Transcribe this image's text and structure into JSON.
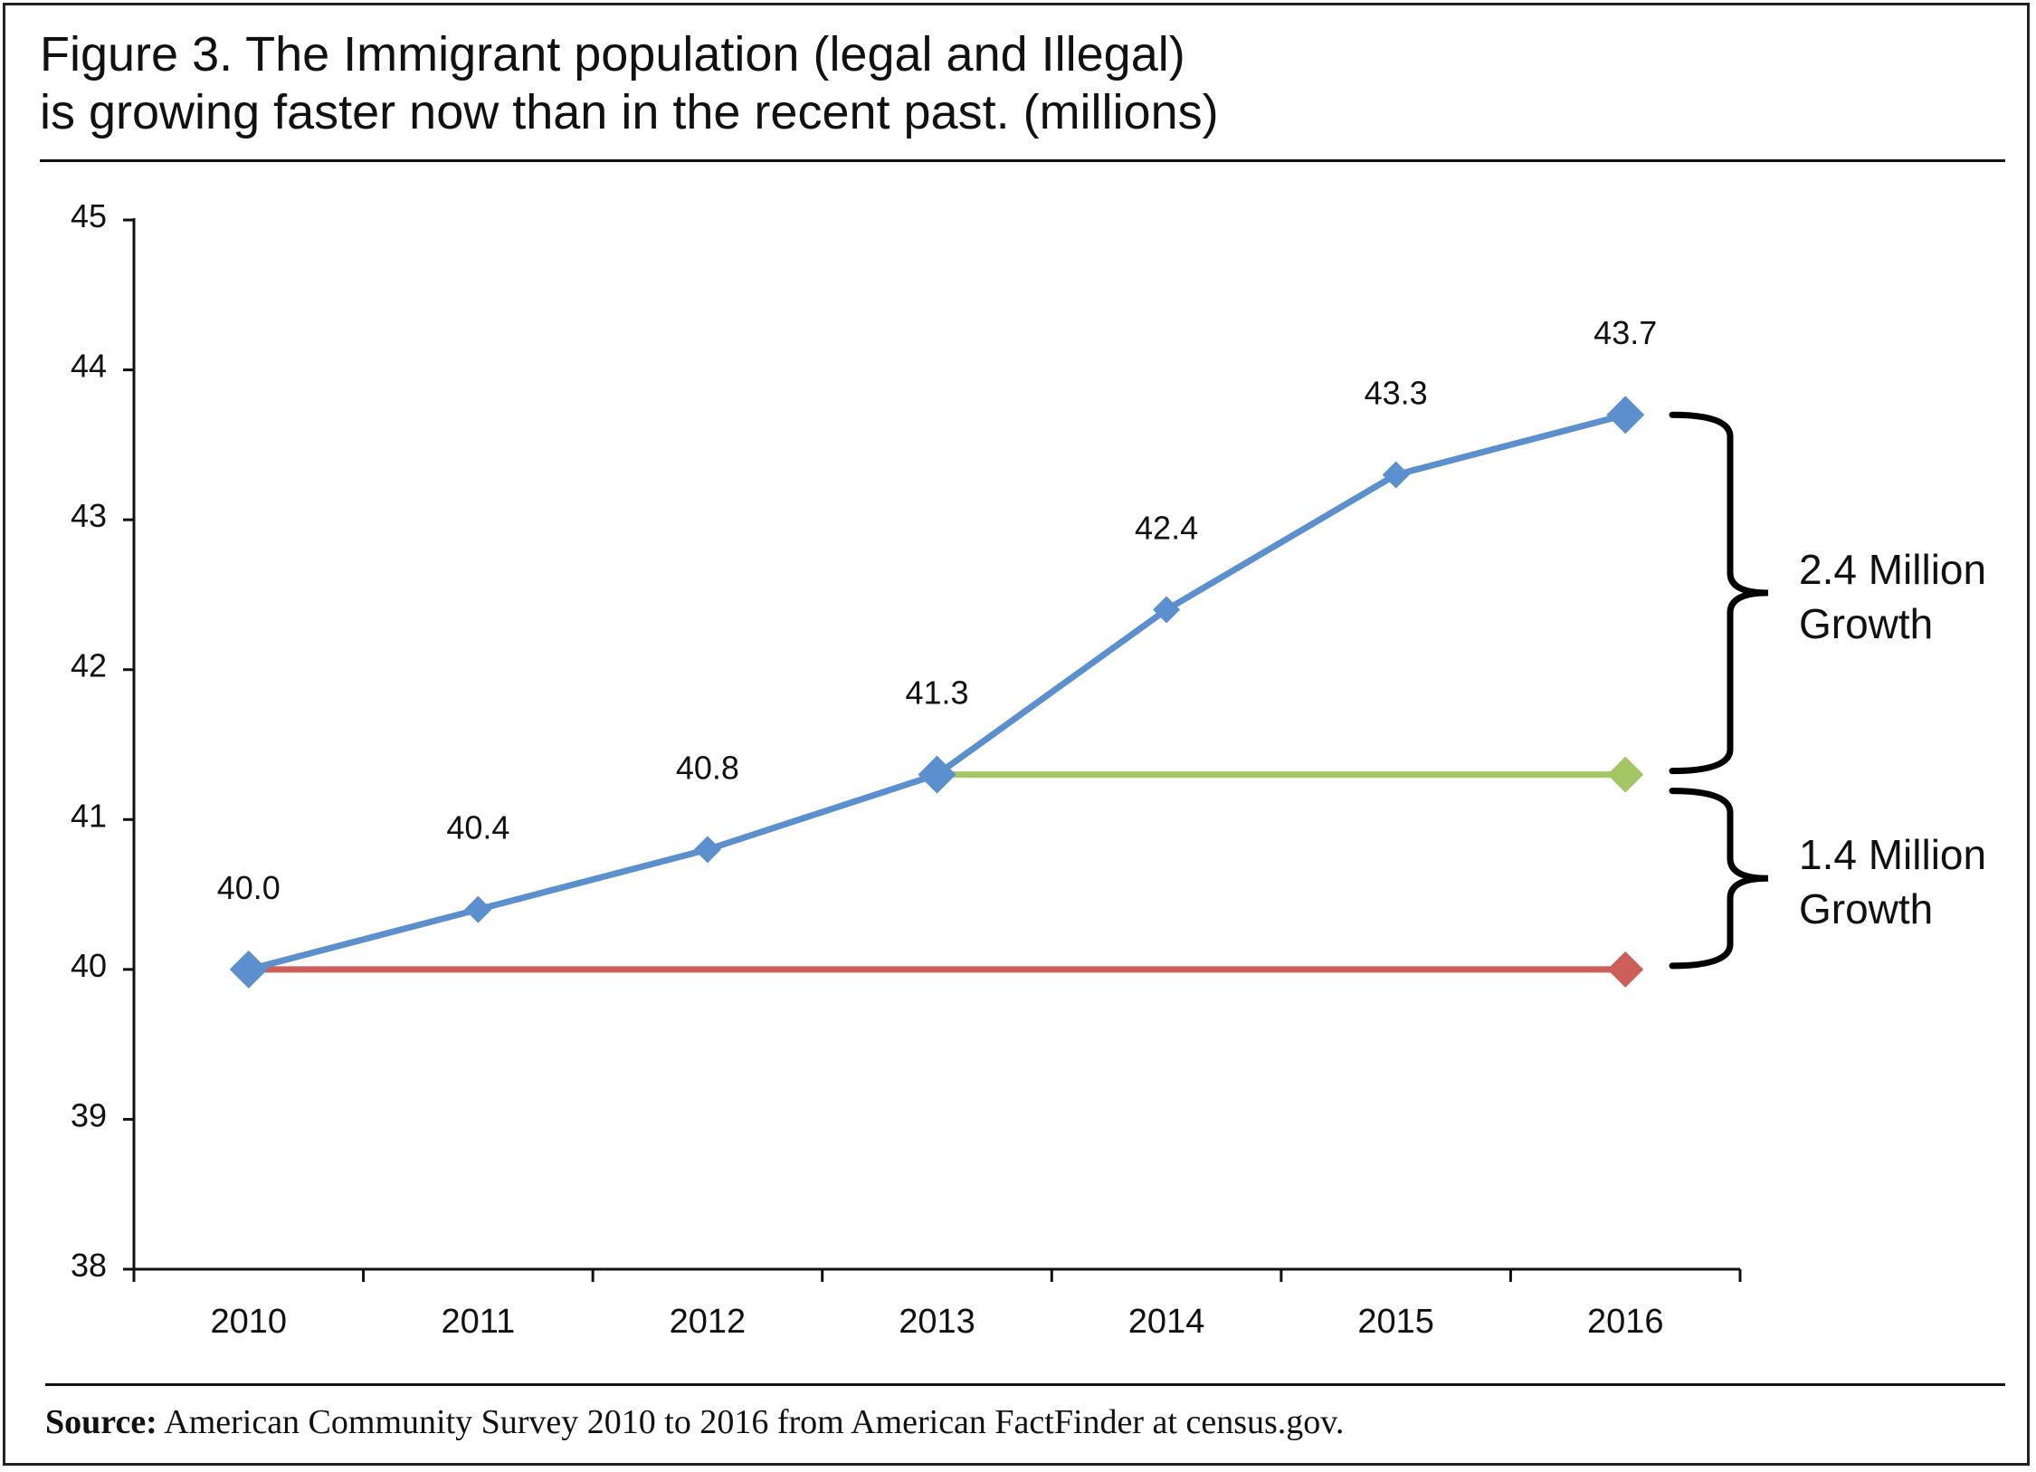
{
  "figure": {
    "title_line1": "Figure 3. The Immigrant population (legal and Illegal)",
    "title_line2": "is growing faster now than in the recent past. (millions)",
    "source_label": "Source:",
    "source_text": " American Community Survey 2010 to 2016 from American FactFinder at census.gov."
  },
  "chart_data": {
    "type": "line",
    "title": "Figure 3. The Immigrant population (legal and Illegal) is growing faster now than in the recent past. (millions)",
    "categories": [
      "2010",
      "2011",
      "2012",
      "2013",
      "2014",
      "2015",
      "2016"
    ],
    "ylim": [
      38,
      45
    ],
    "yticks": [
      38,
      39,
      40,
      41,
      42,
      43,
      44,
      45
    ],
    "grid": false,
    "series": [
      {
        "color": "#5b8fce",
        "values": [
          40.0,
          40.4,
          40.8,
          41.3,
          42.4,
          43.3,
          43.7
        ],
        "data_labels": [
          "40.0",
          "40.4",
          "40.8",
          "41.3",
          "42.4",
          "43.3",
          "43.7"
        ],
        "markers": "diamond"
      },
      {
        "color": "#a5c664",
        "x": [
          "2013",
          "2016"
        ],
        "values": [
          41.3,
          41.3
        ],
        "markers": "diamond"
      },
      {
        "color": "#cd5f5b",
        "x": [
          "2010",
          "2016"
        ],
        "values": [
          40.0,
          40.0
        ],
        "markers": "diamond"
      }
    ],
    "annotations": [
      {
        "line1": "2.4 Million",
        "line2": "Growth",
        "from": 41.3,
        "to": 43.7,
        "at": "2016"
      },
      {
        "line1": "1.4 Million",
        "line2": "Growth",
        "from": 40.0,
        "to": 41.3,
        "at": "2016"
      }
    ]
  }
}
